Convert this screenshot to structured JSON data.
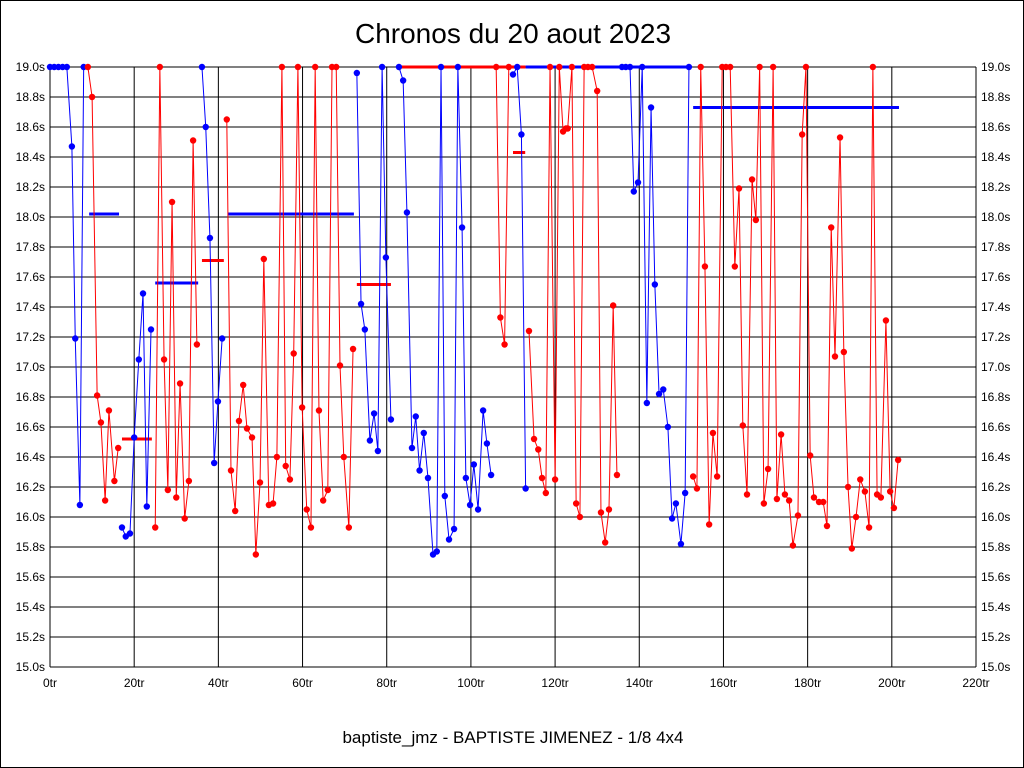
{
  "chart_data": {
    "type": "line",
    "title": "Chronos du 20 aout 2023",
    "xlabel": "baptiste_jmz - BAPTISTE JIMENEZ - 1/8 4x4",
    "ylabel": "",
    "xlim": [
      0,
      220
    ],
    "ylim": [
      15.0,
      19.0
    ],
    "grid": true,
    "x_ticks": [
      "0tr",
      "20tr",
      "40tr",
      "60tr",
      "80tr",
      "100tr",
      "120tr",
      "140tr",
      "160tr",
      "180tr",
      "200tr",
      "220tr"
    ],
    "y_ticks": [
      "15.0s",
      "15.2s",
      "15.4s",
      "15.6s",
      "15.8s",
      "16.0s",
      "16.2s",
      "16.4s",
      "16.6s",
      "16.8s",
      "17.0s",
      "17.2s",
      "17.4s",
      "17.6s",
      "17.8s",
      "18.0s",
      "18.2s",
      "18.4s",
      "18.6s",
      "18.8s",
      "19.0s"
    ],
    "colors": {
      "blue": "#0000ff",
      "red": "#ff0000"
    },
    "runs": [
      {
        "color": "blue",
        "points": [
          [
            0,
            19.0
          ],
          [
            1,
            19.0
          ],
          [
            2,
            19.0
          ],
          [
            3,
            19.0
          ],
          [
            4,
            19.0
          ],
          [
            5.2,
            18.47
          ],
          [
            6,
            17.19
          ],
          [
            7.1,
            16.08
          ],
          [
            8,
            19.0
          ]
        ]
      },
      {
        "color": "red",
        "points": [
          [
            9,
            19.0
          ],
          [
            10,
            18.8
          ],
          [
            11.2,
            16.81
          ],
          [
            12.1,
            16.63
          ],
          [
            13.1,
            16.11
          ],
          [
            14,
            16.71
          ],
          [
            15.3,
            16.24
          ],
          [
            16.2,
            16.46
          ]
        ]
      },
      {
        "color": "blue",
        "points": [
          [
            17.1,
            15.93
          ],
          [
            18,
            15.87
          ],
          [
            19,
            15.89
          ],
          [
            20,
            16.53
          ],
          [
            21.1,
            17.05
          ],
          [
            22.1,
            17.49
          ],
          [
            23,
            16.07
          ],
          [
            24,
            17.25
          ]
        ]
      },
      {
        "color": "red",
        "points": [
          [
            25,
            15.93
          ],
          [
            26.1,
            19.0
          ],
          [
            27.1,
            17.05
          ],
          [
            28,
            16.18
          ],
          [
            29,
            18.1
          ],
          [
            30,
            16.13
          ],
          [
            30.9,
            16.89
          ],
          [
            32,
            15.99
          ],
          [
            33,
            16.24
          ],
          [
            34,
            18.51
          ],
          [
            34.9,
            17.15
          ]
        ]
      },
      {
        "color": "blue",
        "points": [
          [
            36.1,
            19.0
          ],
          [
            37,
            18.6
          ],
          [
            38,
            17.86
          ],
          [
            39,
            16.36
          ],
          [
            39.9,
            16.77
          ],
          [
            40.9,
            17.19
          ]
        ]
      },
      {
        "color": "red",
        "points": [
          [
            42,
            18.65
          ],
          [
            43,
            16.31
          ],
          [
            44,
            16.04
          ],
          [
            44.9,
            16.64
          ],
          [
            45.9,
            16.88
          ],
          [
            46.8,
            16.59
          ],
          [
            48,
            16.53
          ],
          [
            48.9,
            15.75
          ],
          [
            49.9,
            16.23
          ],
          [
            50.8,
            17.72
          ],
          [
            52,
            16.08
          ],
          [
            53,
            16.09
          ],
          [
            53.9,
            16.4
          ],
          [
            55.1,
            19.0
          ],
          [
            56,
            16.34
          ],
          [
            57,
            16.25
          ],
          [
            57.9,
            17.09
          ],
          [
            58.9,
            19.0
          ],
          [
            59.9,
            16.73
          ],
          [
            61,
            16.05
          ],
          [
            62,
            15.93
          ],
          [
            63,
            19.0
          ],
          [
            63.9,
            16.71
          ],
          [
            64.9,
            16.11
          ],
          [
            66,
            16.18
          ],
          [
            67,
            19.0
          ],
          [
            68,
            19.0
          ],
          [
            68.9,
            17.01
          ],
          [
            69.8,
            16.4
          ],
          [
            71,
            15.93
          ],
          [
            72,
            17.12
          ]
        ]
      },
      {
        "color": "blue",
        "points": [
          [
            72.9,
            18.96
          ],
          [
            73.9,
            17.42
          ],
          [
            74.8,
            17.25
          ],
          [
            76,
            16.51
          ],
          [
            77,
            16.69
          ],
          [
            77.9,
            16.44
          ],
          [
            78.9,
            19.0
          ],
          [
            79.8,
            17.73
          ],
          [
            81,
            16.65
          ]
        ]
      },
      {
        "color": "blue",
        "points": [
          [
            82.9,
            19.0
          ],
          [
            83.9,
            18.91
          ],
          [
            84.8,
            18.03
          ],
          [
            86,
            16.46
          ],
          [
            86.9,
            16.67
          ],
          [
            87.8,
            16.31
          ],
          [
            88.8,
            16.56
          ],
          [
            89.8,
            16.26
          ],
          [
            91,
            15.75
          ],
          [
            91.9,
            15.77
          ],
          [
            92.9,
            19.0
          ],
          [
            93.8,
            16.14
          ],
          [
            94.8,
            15.85
          ],
          [
            96,
            15.92
          ],
          [
            96.9,
            19.0
          ],
          [
            97.9,
            17.93
          ],
          [
            98.8,
            16.26
          ],
          [
            99.8,
            16.08
          ],
          [
            100.7,
            16.35
          ],
          [
            101.7,
            16.05
          ],
          [
            102.9,
            16.71
          ],
          [
            103.8,
            16.49
          ],
          [
            104.8,
            16.28
          ]
        ]
      },
      {
        "color": "red",
        "points": [
          [
            106,
            19.0
          ],
          [
            107,
            17.33
          ],
          [
            108,
            17.15
          ],
          [
            109,
            19.0
          ]
        ]
      },
      {
        "color": "blue",
        "points": [
          [
            110,
            18.95
          ],
          [
            111,
            19.0
          ],
          [
            112,
            18.55
          ],
          [
            113,
            16.19
          ]
        ]
      },
      {
        "color": "red",
        "points": [
          [
            113.8,
            17.24
          ],
          [
            115,
            16.52
          ],
          [
            116,
            16.45
          ],
          [
            116.9,
            16.26
          ],
          [
            117.8,
            16.16
          ],
          [
            118.8,
            19.0
          ],
          [
            120,
            16.25
          ],
          [
            121,
            19.0
          ],
          [
            121.9,
            18.57
          ],
          [
            122.6,
            18.59
          ],
          [
            123,
            18.59
          ],
          [
            124,
            19.0
          ],
          [
            125,
            16.09
          ],
          [
            125.9,
            16.0
          ],
          [
            126.9,
            19.0
          ],
          [
            127.8,
            19.0
          ],
          [
            128.8,
            19.0
          ],
          [
            130,
            18.84
          ],
          [
            130.9,
            16.03
          ],
          [
            131.9,
            15.83
          ],
          [
            132.8,
            16.05
          ],
          [
            133.8,
            17.41
          ],
          [
            134.7,
            16.28
          ]
        ]
      },
      {
        "color": "blue",
        "points": [
          [
            135.9,
            19.0
          ],
          [
            136.8,
            19.0
          ],
          [
            137.8,
            19.0
          ],
          [
            138.7,
            18.17
          ],
          [
            139.7,
            18.23
          ],
          [
            140.7,
            19.0
          ],
          [
            141.8,
            16.76
          ],
          [
            142.8,
            18.73
          ],
          [
            143.7,
            17.55
          ],
          [
            144.7,
            16.82
          ],
          [
            145.7,
            16.85
          ],
          [
            146.8,
            16.6
          ],
          [
            147.8,
            15.99
          ],
          [
            148.7,
            16.09
          ],
          [
            149.9,
            15.82
          ],
          [
            150.9,
            16.16
          ],
          [
            151.8,
            19.0
          ]
        ]
      },
      {
        "color": "red",
        "points": [
          [
            152.8,
            16.27
          ],
          [
            153.7,
            16.19
          ],
          [
            154.6,
            19.0
          ],
          [
            155.6,
            17.67
          ],
          [
            156.6,
            15.95
          ],
          [
            157.5,
            16.56
          ],
          [
            158.5,
            16.27
          ],
          [
            159.7,
            19.0
          ],
          [
            160.6,
            19.0
          ],
          [
            161.6,
            19.0
          ],
          [
            162.7,
            17.67
          ],
          [
            163.7,
            18.19
          ],
          [
            164.6,
            16.61
          ],
          [
            165.6,
            16.15
          ],
          [
            166.8,
            18.25
          ],
          [
            167.7,
            17.98
          ],
          [
            168.6,
            19.0
          ],
          [
            169.6,
            16.09
          ],
          [
            170.6,
            16.32
          ],
          [
            171.8,
            19.0
          ],
          [
            172.7,
            16.12
          ],
          [
            173.7,
            16.55
          ],
          [
            174.6,
            16.15
          ],
          [
            175.6,
            16.11
          ],
          [
            176.5,
            15.81
          ],
          [
            177.7,
            16.01
          ],
          [
            178.7,
            18.55
          ],
          [
            179.6,
            19.0
          ],
          [
            180.6,
            16.41
          ],
          [
            181.5,
            16.13
          ],
          [
            182.7,
            16.1
          ],
          [
            183.7,
            16.1
          ],
          [
            184.6,
            15.94
          ],
          [
            185.6,
            17.93
          ],
          [
            186.5,
            17.07
          ],
          [
            187.7,
            18.53
          ],
          [
            188.6,
            17.1
          ],
          [
            189.6,
            16.2
          ],
          [
            190.5,
            15.79
          ],
          [
            191.5,
            16.0
          ],
          [
            192.5,
            16.25
          ],
          [
            193.6,
            16.17
          ],
          [
            194.6,
            15.93
          ],
          [
            195.5,
            19.0
          ],
          [
            196.5,
            16.15
          ],
          [
            197.4,
            16.13
          ],
          [
            198.6,
            17.31
          ],
          [
            199.6,
            16.17
          ],
          [
            200.5,
            16.06
          ],
          [
            201.5,
            16.38
          ]
        ]
      }
    ],
    "averages": [
      {
        "color": "blue",
        "x": [
          9.3,
          16.4
        ],
        "y": 18.02
      },
      {
        "color": "red",
        "x": [
          17.1,
          24.2
        ],
        "y": 16.52
      },
      {
        "color": "blue",
        "x": [
          25,
          35.2
        ],
        "y": 17.56
      },
      {
        "color": "red",
        "x": [
          36.1,
          41.3
        ],
        "y": 17.71
      },
      {
        "color": "blue",
        "x": [
          42.3,
          72.2
        ],
        "y": 18.02
      },
      {
        "color": "red",
        "x": [
          72.9,
          81
        ],
        "y": 17.55
      },
      {
        "color": "red",
        "x": [
          83.4,
          113
        ],
        "y": 19.0
      },
      {
        "color": "red",
        "x": [
          110,
          112.9
        ],
        "y": 18.43
      },
      {
        "color": "blue",
        "x": [
          113,
          152
        ],
        "y": 19.0
      },
      {
        "color": "blue",
        "x": [
          152.8,
          201.7
        ],
        "y": 18.73
      }
    ]
  }
}
